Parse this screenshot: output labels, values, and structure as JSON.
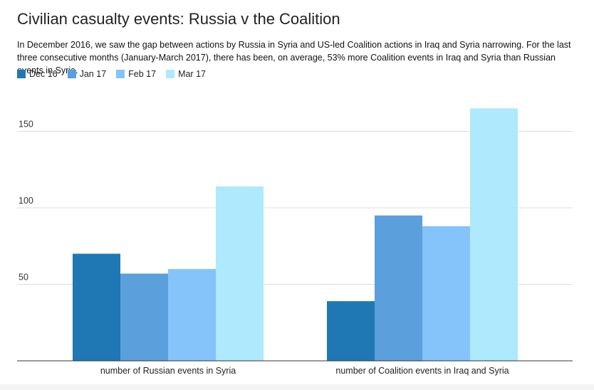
{
  "chart_data": {
    "type": "bar",
    "title": "Civilian casualty events: Russia v the Coalition",
    "subtitle": "In December 2016, we saw the gap between actions by Russia in Syria and US-led Coalition actions in Iraq and Syria narrowing. For the last three consecutive months (January-March 2017), there has been, on average, 53% more Coalition events in Iraq and Syria than Russian events in Syria.",
    "categories": [
      "number of Russian events in Syria",
      "number of Coalition events in Iraq and Syria"
    ],
    "series": [
      {
        "name": "Dec 16",
        "color": "#1f77b4",
        "values": [
          70,
          39
        ]
      },
      {
        "name": "Jan 17",
        "color": "#5b9fdd",
        "values": [
          57,
          95
        ]
      },
      {
        "name": "Feb 17",
        "color": "#85c4fa",
        "values": [
          60,
          88
        ]
      },
      {
        "name": "Mar 17",
        "color": "#aee9fd",
        "values": [
          114,
          165
        ]
      }
    ],
    "yticks": [
      50,
      100,
      150
    ],
    "ylim": [
      0,
      170
    ],
    "xlabel": "",
    "ylabel": "",
    "grid": true,
    "legend": "top-left"
  }
}
